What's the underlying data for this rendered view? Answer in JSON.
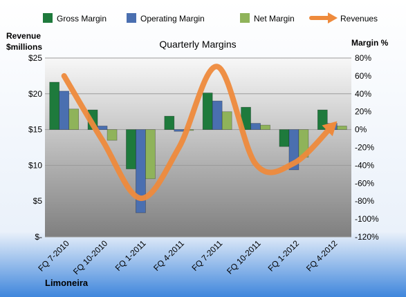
{
  "chart_data": {
    "type": "bar",
    "title": "Quarterly Margins",
    "subtitle": "",
    "company": "Limoneira",
    "categories": [
      "FQ 7-2010",
      "FQ 10-2010",
      "FQ 1-2011",
      "FQ 4-2011",
      "FQ 7-2011",
      "FQ 10-2011",
      "FQ 1-2012",
      "FQ 4-2012"
    ],
    "series": [
      {
        "name": "Gross Margin",
        "type": "bar",
        "axis": "right",
        "color": "#1e7a3c",
        "values": [
          53,
          22,
          -44,
          15,
          41,
          25,
          -19,
          22
        ]
      },
      {
        "name": "Operating Margin",
        "type": "bar",
        "axis": "right",
        "color": "#4a6fb0",
        "values": [
          43,
          4,
          -93,
          -2,
          32,
          7,
          -45,
          7
        ]
      },
      {
        "name": "Net Margin",
        "type": "bar",
        "axis": "right",
        "color": "#8fb35a",
        "values": [
          23,
          -12,
          -55,
          -1,
          20,
          5,
          -31,
          4
        ]
      },
      {
        "name": "Revenues",
        "type": "line",
        "axis": "left",
        "color": "#ee8a3c",
        "values": [
          22.5,
          13.5,
          5.4,
          12.5,
          23.8,
          10.2,
          10.3,
          15.5
        ]
      }
    ],
    "y_left": {
      "label_line1": "Revenue",
      "label_line2": "$millions",
      "min": 0,
      "max": 25,
      "step": 5,
      "tick_labels": [
        "$-",
        "$5",
        "$10",
        "$15",
        "$20",
        "$25"
      ]
    },
    "y_right": {
      "label": "Margin %",
      "min": -120,
      "max": 80,
      "step": 20,
      "tick_labels": [
        "-120%",
        "-100%",
        "-80%",
        "-60%",
        "-40%",
        "-20%",
        "0%",
        "20%",
        "40%",
        "60%",
        "80%"
      ]
    },
    "grid": true,
    "legend_position": "top"
  }
}
